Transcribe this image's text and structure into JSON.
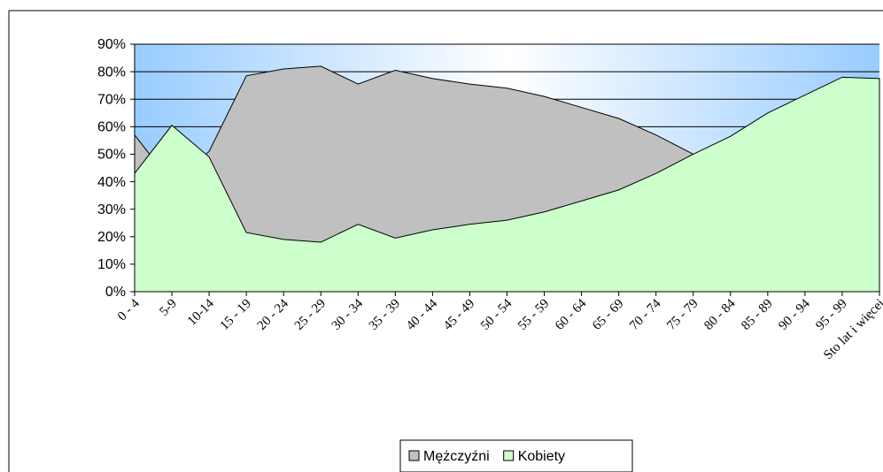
{
  "chart_data": {
    "type": "area",
    "categories": [
      "0 - 4",
      "5-9",
      "10-14",
      "15 - 19",
      "20 - 24",
      "25 - 29",
      "30 - 34",
      "35 - 39",
      "40 - 44",
      "45 - 49",
      "50 - 54",
      "55 - 59",
      "60 - 64",
      "65 - 69",
      "70 - 74",
      "75 - 79",
      "80 - 84",
      "85 - 89",
      "90 - 94",
      "95 - 99",
      "Sto lat i więcej"
    ],
    "series": [
      {
        "name": "Mężczyźni",
        "color": "#c0c0c0",
        "values": [
          57,
          39.5,
          51,
          78.5,
          81,
          82,
          75.5,
          80.5,
          77.5,
          75.5,
          74,
          71,
          67,
          63,
          57,
          50,
          43.5,
          35,
          28.5,
          22,
          22.5
        ]
      },
      {
        "name": "Kobiety",
        "color": "#ccffcc",
        "values": [
          43,
          60.5,
          49,
          21.5,
          19,
          18,
          24.5,
          19.5,
          22.5,
          24.5,
          26,
          29,
          33,
          37,
          43,
          50,
          56.5,
          65,
          71.5,
          78,
          77.5
        ]
      }
    ],
    "ylim": [
      0,
      90
    ],
    "yticks": [
      {
        "value": 0,
        "label": "0%"
      },
      {
        "value": 10,
        "label": "10%"
      },
      {
        "value": 20,
        "label": "20%"
      },
      {
        "value": 30,
        "label": "30%"
      },
      {
        "value": 40,
        "label": "40%"
      },
      {
        "value": 50,
        "label": "50%"
      },
      {
        "value": 60,
        "label": "60%"
      },
      {
        "value": 70,
        "label": "70%"
      },
      {
        "value": 80,
        "label": "80%"
      },
      {
        "value": 90,
        "label": "90%"
      }
    ],
    "grid": true,
    "legend": "bottom"
  }
}
